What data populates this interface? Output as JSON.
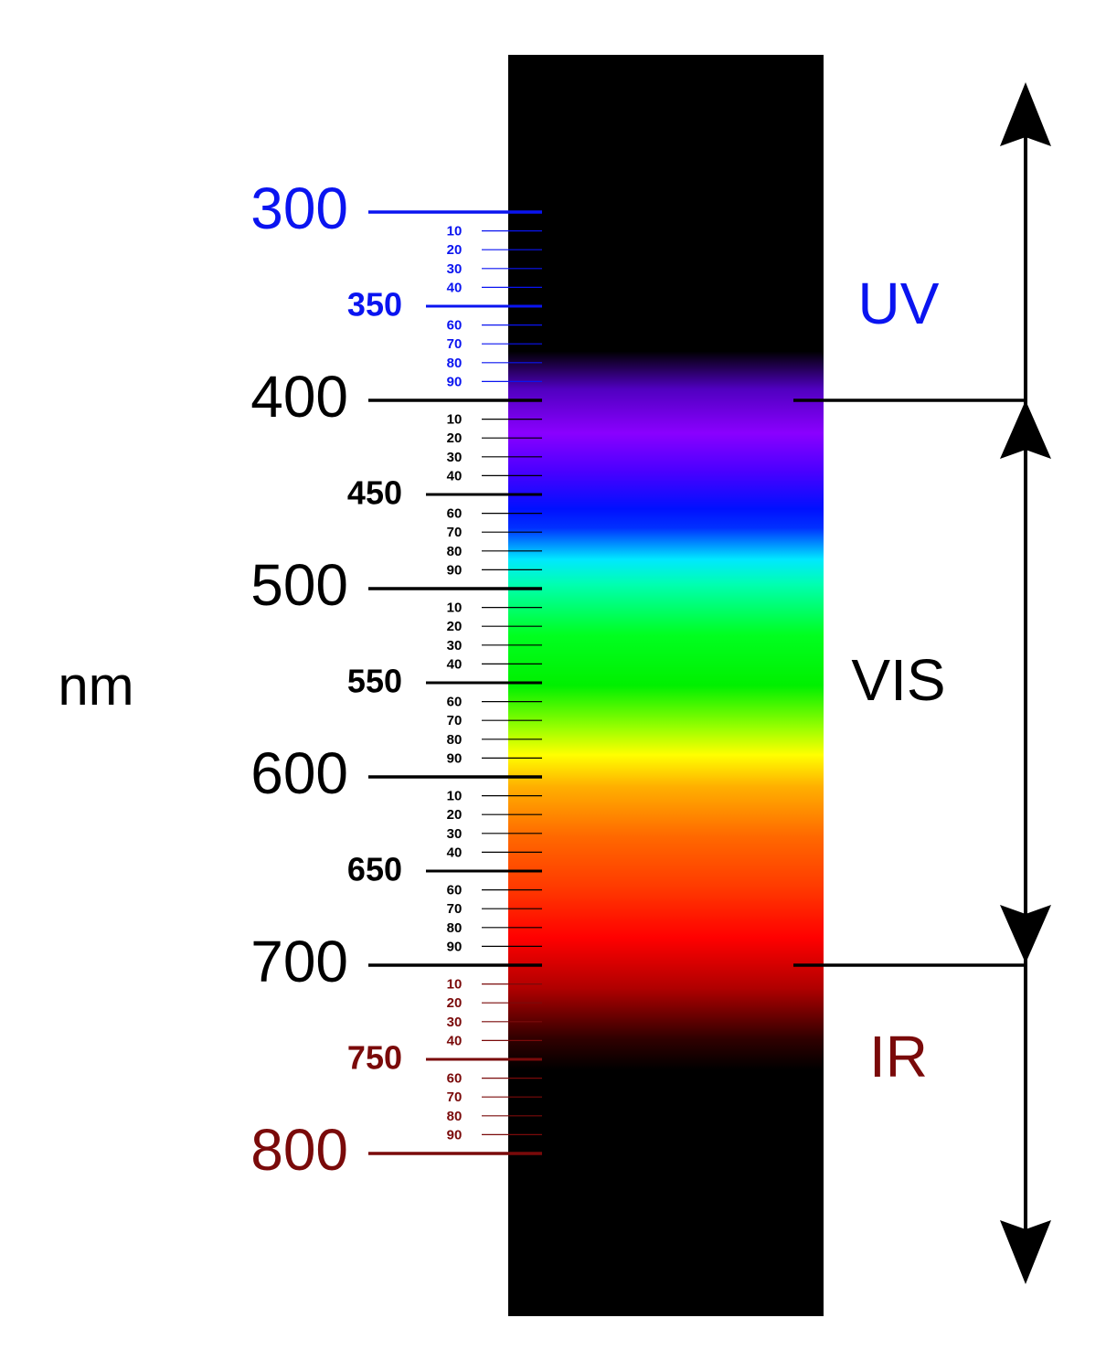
{
  "unit": "nm",
  "scale": {
    "range": [
      300,
      800
    ],
    "ticks": [
      {
        "value": 300,
        "label": "300"
      },
      {
        "value": 310,
        "label": "10"
      },
      {
        "value": 320,
        "label": "20"
      },
      {
        "value": 330,
        "label": "30"
      },
      {
        "value": 340,
        "label": "40"
      },
      {
        "value": 350,
        "label": "350"
      },
      {
        "value": 360,
        "label": "60"
      },
      {
        "value": 370,
        "label": "70"
      },
      {
        "value": 380,
        "label": "80"
      },
      {
        "value": 390,
        "label": "90"
      },
      {
        "value": 400,
        "label": "400"
      },
      {
        "value": 410,
        "label": "10"
      },
      {
        "value": 420,
        "label": "20"
      },
      {
        "value": 430,
        "label": "30"
      },
      {
        "value": 440,
        "label": "40"
      },
      {
        "value": 450,
        "label": "450"
      },
      {
        "value": 460,
        "label": "60"
      },
      {
        "value": 470,
        "label": "70"
      },
      {
        "value": 480,
        "label": "80"
      },
      {
        "value": 490,
        "label": "90"
      },
      {
        "value": 500,
        "label": "500"
      },
      {
        "value": 510,
        "label": "10"
      },
      {
        "value": 520,
        "label": "20"
      },
      {
        "value": 530,
        "label": "30"
      },
      {
        "value": 540,
        "label": "40"
      },
      {
        "value": 550,
        "label": "550"
      },
      {
        "value": 560,
        "label": "60"
      },
      {
        "value": 570,
        "label": "70"
      },
      {
        "value": 580,
        "label": "80"
      },
      {
        "value": 590,
        "label": "90"
      },
      {
        "value": 600,
        "label": "600"
      },
      {
        "value": 610,
        "label": "10"
      },
      {
        "value": 620,
        "label": "20"
      },
      {
        "value": 630,
        "label": "30"
      },
      {
        "value": 640,
        "label": "40"
      },
      {
        "value": 650,
        "label": "650"
      },
      {
        "value": 660,
        "label": "60"
      },
      {
        "value": 670,
        "label": "70"
      },
      {
        "value": 680,
        "label": "80"
      },
      {
        "value": 690,
        "label": "90"
      },
      {
        "value": 700,
        "label": "700"
      },
      {
        "value": 710,
        "label": "10"
      },
      {
        "value": 720,
        "label": "20"
      },
      {
        "value": 730,
        "label": "30"
      },
      {
        "value": 740,
        "label": "40"
      },
      {
        "value": 750,
        "label": "750"
      },
      {
        "value": 760,
        "label": "60"
      },
      {
        "value": 770,
        "label": "70"
      },
      {
        "value": 780,
        "label": "80"
      },
      {
        "value": 790,
        "label": "90"
      },
      {
        "value": 800,
        "label": "800"
      }
    ]
  },
  "regions": [
    {
      "label": "UV",
      "range": [
        300,
        400
      ],
      "color": "#0a14f0"
    },
    {
      "label": "VIS",
      "range": [
        400,
        700
      ],
      "color": "#000000"
    },
    {
      "label": "IR",
      "range": [
        700,
        800
      ],
      "color": "#7a0a0a"
    }
  ]
}
